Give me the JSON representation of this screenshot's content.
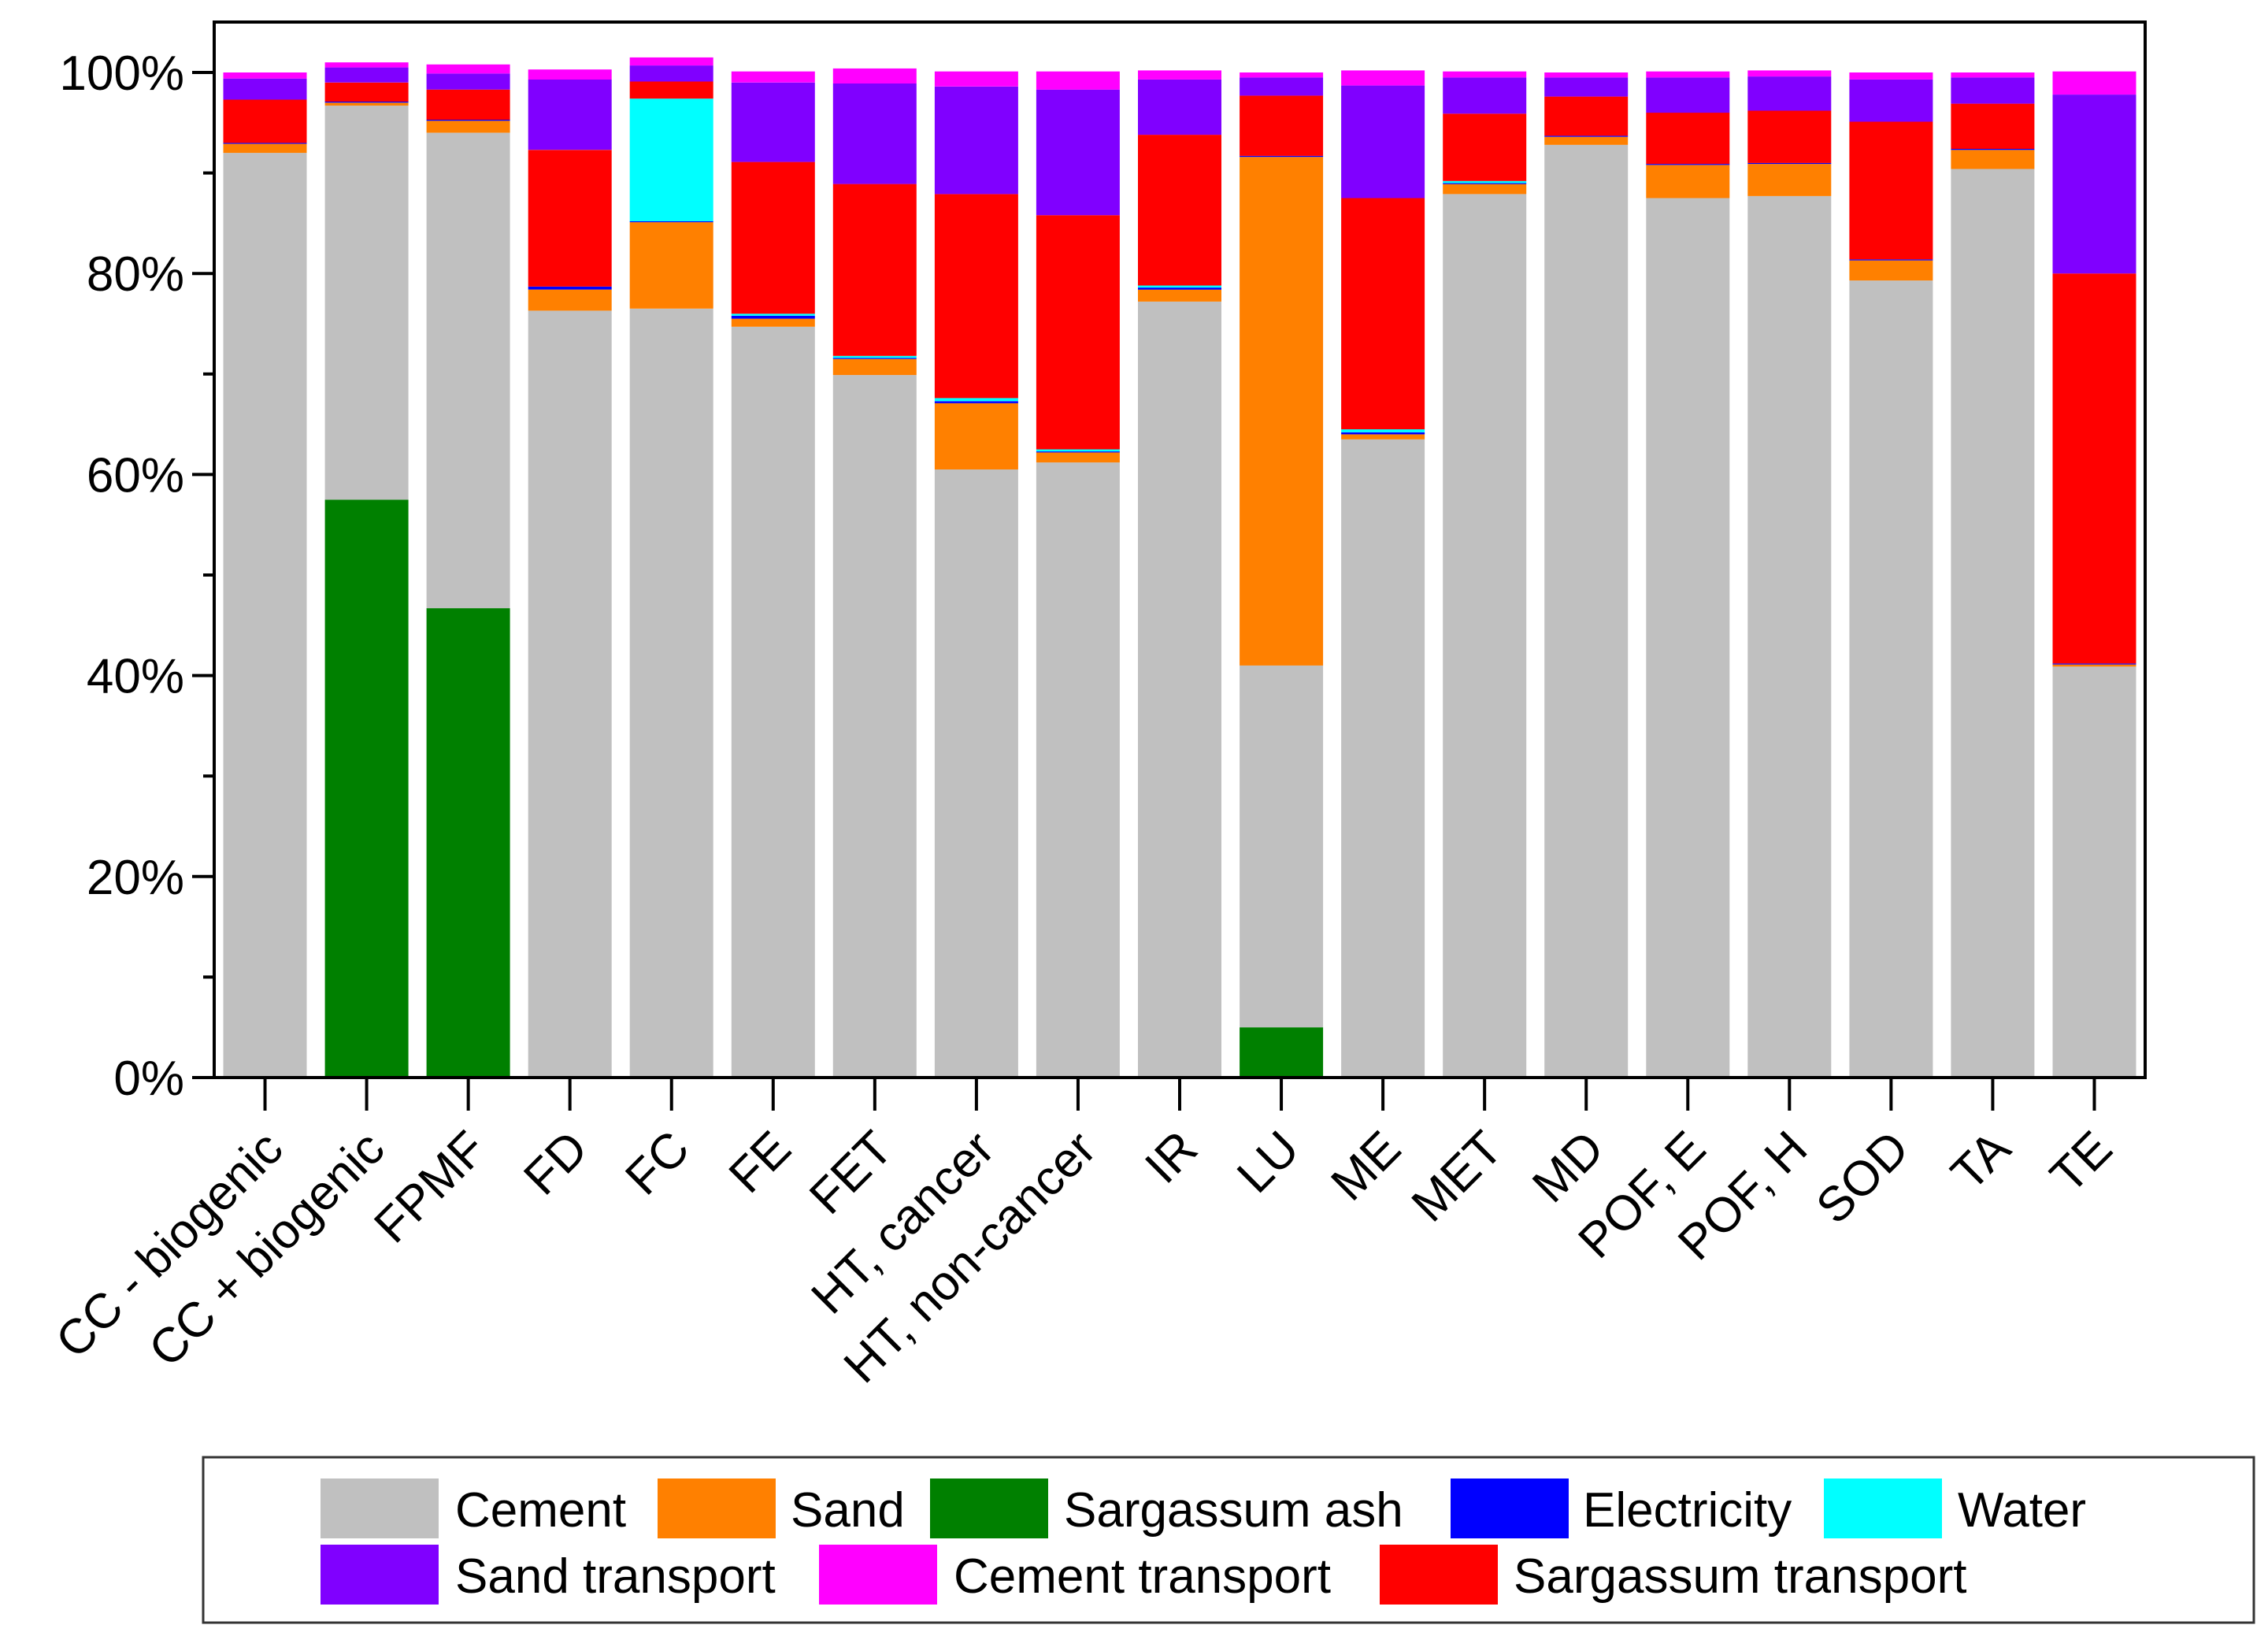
{
  "chart_data": {
    "type": "stacked-bar-100",
    "title": "",
    "xlabel": "",
    "ylabel": "",
    "ylim": [
      0,
      100
    ],
    "y_ticks": [
      "0%",
      "20%",
      "40%",
      "60%",
      "80%",
      "100%"
    ],
    "y_tick_values": [
      0,
      20,
      40,
      60,
      80,
      100
    ],
    "grid": false,
    "legend_position": "bottom",
    "categories": [
      "CC - biogenic",
      "CC + biogenic",
      "FPMF",
      "FD",
      "FC",
      "FE",
      "FET",
      "HT, cancer",
      "HT, non-cancer",
      "IR",
      "LU",
      "ME",
      "MET",
      "MD",
      "POF, E",
      "POF, H",
      "SOD",
      "TA",
      "TE"
    ],
    "series": [
      {
        "name": "Sargassum ash",
        "color": "#008000",
        "values": [
          0,
          57.5,
          46.7,
          0,
          0,
          0,
          0,
          0,
          0,
          0,
          5.0,
          0,
          0,
          0,
          0,
          0,
          0,
          0,
          0
        ]
      },
      {
        "name": "Cement",
        "color": "#c0c0c0",
        "values": [
          92.0,
          39.2,
          47.3,
          76.3,
          76.5,
          74.7,
          69.9,
          60.5,
          61.2,
          77.2,
          36.0,
          63.5,
          87.9,
          92.8,
          87.5,
          87.7,
          79.3,
          90.4,
          40.9
        ]
      },
      {
        "name": "Sand",
        "color": "#ff8000",
        "values": [
          0.9,
          0.3,
          1.2,
          2.1,
          8.6,
          0.8,
          1.6,
          6.6,
          1.0,
          1.2,
          50.6,
          0.5,
          1.0,
          0.8,
          3.3,
          3.2,
          2.0,
          1.9,
          0.2
        ]
      },
      {
        "name": "Electricity",
        "color": "#0000ff",
        "values": [
          0.1,
          0.1,
          0.1,
          0.3,
          0.1,
          0.3,
          0.1,
          0.2,
          0.1,
          0.2,
          0.1,
          0.2,
          0.1,
          0.1,
          0.1,
          0.1,
          0.1,
          0.1,
          0.1
        ]
      },
      {
        "name": "Water",
        "color": "#00ffff",
        "values": [
          0,
          0,
          0,
          0,
          12.2,
          0.2,
          0.2,
          0.3,
          0.2,
          0.2,
          0,
          0.3,
          0.2,
          0,
          0,
          0,
          0,
          0,
          0
        ]
      },
      {
        "name": "Sargassum transport",
        "color": "#ff0000",
        "values": [
          4.3,
          1.9,
          3.0,
          13.6,
          1.7,
          15.1,
          17.1,
          20.3,
          23.3,
          15.0,
          6.0,
          23.0,
          6.7,
          3.9,
          5.1,
          5.2,
          13.7,
          4.5,
          38.8
        ]
      },
      {
        "name": "Sand transport",
        "color": "#8000ff",
        "values": [
          2.1,
          1.5,
          1.6,
          7.0,
          1.6,
          7.9,
          10.0,
          10.7,
          12.5,
          5.5,
          1.8,
          11.2,
          3.6,
          1.9,
          3.5,
          3.4,
          4.2,
          2.6,
          17.8
        ]
      },
      {
        "name": "Cement transport",
        "color": "#ff00ff",
        "values": [
          0.6,
          0.5,
          0.9,
          1.0,
          0.8,
          1.1,
          1.5,
          1.5,
          1.8,
          0.9,
          0.5,
          1.5,
          0.6,
          0.5,
          0.6,
          0.6,
          0.7,
          0.5,
          2.3
        ]
      }
    ],
    "legend": {
      "row1": [
        "Cement",
        "Sand",
        "Sargassum ash",
        "Electricity",
        "Water"
      ],
      "row2": [
        "Sand transport",
        "Cement transport",
        "Sargassum transport"
      ]
    }
  }
}
